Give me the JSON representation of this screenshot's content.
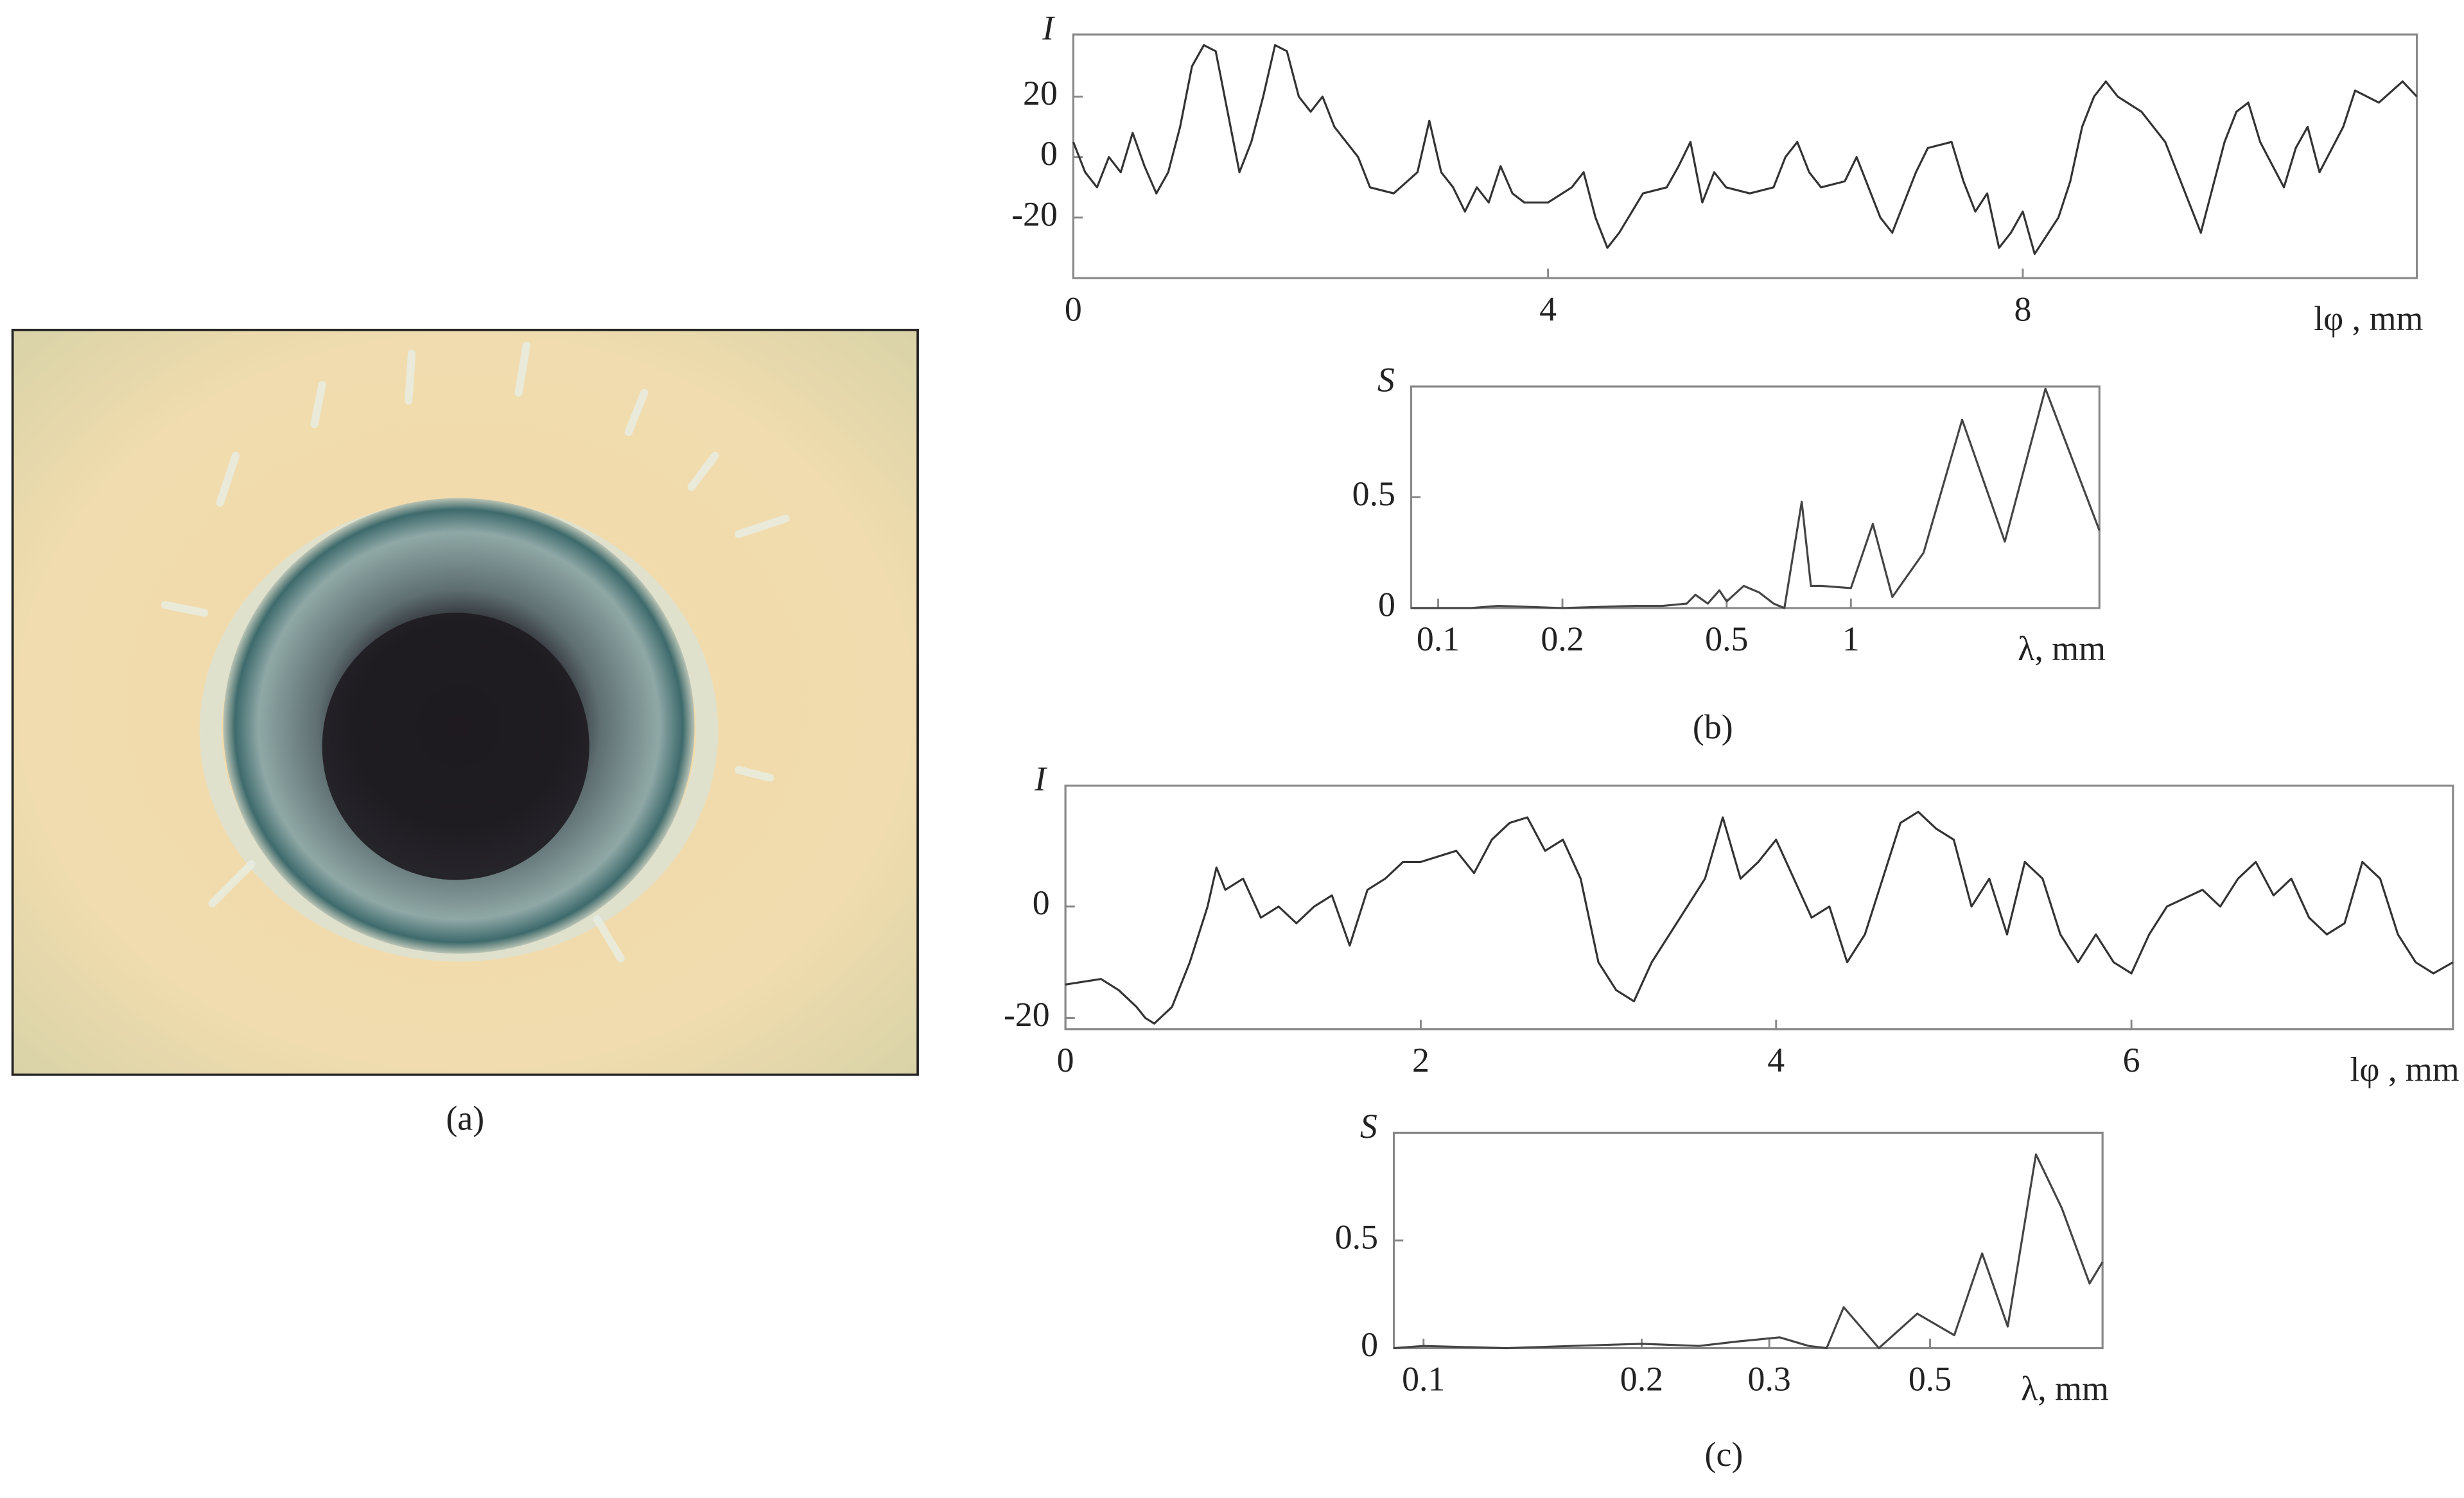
{
  "captions": [
    "(a)",
    "(b)",
    "(c)"
  ],
  "chart_data": [
    {
      "type": "line",
      "ylabel": "I",
      "xlabel": "lφ , mm",
      "color": "#333",
      "xlim": [
        0,
        11.32
      ],
      "xticks": [
        0,
        4,
        8
      ],
      "ylim": [
        -40,
        40.5
      ],
      "yticks": [
        -20,
        0,
        20
      ],
      "x": [
        0,
        0.1,
        0.2,
        0.3,
        0.4,
        0.5,
        0.6,
        0.7,
        0.8,
        0.9,
        1.0,
        1.1,
        1.2,
        1.3,
        1.4,
        1.5,
        1.6,
        1.7,
        1.8,
        1.9,
        2.0,
        2.1,
        2.2,
        2.4,
        2.5,
        2.7,
        2.9,
        3.0,
        3.1,
        3.2,
        3.3,
        3.4,
        3.5,
        3.6,
        3.7,
        3.8,
        4.0,
        4.2,
        4.3,
        4.4,
        4.5,
        4.6,
        4.8,
        5.0,
        5.1,
        5.2,
        5.3,
        5.4,
        5.5,
        5.7,
        5.9,
        6.0,
        6.1,
        6.2,
        6.3,
        6.5,
        6.6,
        6.7,
        6.8,
        6.9,
        7.0,
        7.1,
        7.2,
        7.4,
        7.5,
        7.6,
        7.7,
        7.8,
        7.9,
        8.0,
        8.1,
        8.3,
        8.4,
        8.5,
        8.6,
        8.7,
        8.8,
        9.0,
        9.2,
        9.4,
        9.5,
        9.6,
        9.7,
        9.8,
        9.9,
        10.0,
        10.2,
        10.3,
        10.4,
        10.5,
        10.7,
        10.8,
        11.0,
        11.2,
        11.32
      ],
      "values": [
        5,
        -5,
        -10,
        0,
        -5,
        8,
        -3,
        -12,
        -5,
        10,
        30,
        37,
        35,
        15,
        -5,
        5,
        20,
        37,
        35,
        20,
        15,
        20,
        10,
        0,
        -10,
        -12,
        -5,
        12,
        -5,
        -10,
        -18,
        -10,
        -15,
        -3,
        -12,
        -15,
        -15,
        -10,
        -5,
        -20,
        -30,
        -25,
        -12,
        -10,
        -3,
        5,
        -15,
        -5,
        -10,
        -12,
        -10,
        0,
        5,
        -5,
        -10,
        -8,
        0,
        -10,
        -20,
        -25,
        -15,
        -5,
        3,
        5,
        -8,
        -18,
        -12,
        -30,
        -25,
        -18,
        -32,
        -20,
        -8,
        10,
        20,
        25,
        20,
        15,
        5,
        -15,
        -25,
        -10,
        5,
        15,
        18,
        5,
        -10,
        3,
        10,
        -5,
        10,
        22,
        18,
        25,
        20
      ]
    },
    {
      "type": "line",
      "ylabel": "S",
      "xlabel": "λ, mm",
      "color": "#444",
      "xscale": "log",
      "xlim": [
        0.086,
        4.0
      ],
      "xticks": [
        0.1,
        0.2,
        0.5,
        1
      ],
      "ylim": [
        0,
        1
      ],
      "yticks": [
        0,
        0.5
      ],
      "x": [
        0.086,
        0.12,
        0.14,
        0.2,
        0.3,
        0.35,
        0.4,
        0.42,
        0.45,
        0.48,
        0.5,
        0.55,
        0.6,
        0.65,
        0.69,
        0.76,
        0.8,
        0.85,
        1.0,
        1.13,
        1.26,
        1.5,
        1.86,
        2.36,
        2.96,
        4.0
      ],
      "values": [
        0,
        0,
        0.01,
        0,
        0.01,
        0.01,
        0.02,
        0.06,
        0.02,
        0.08,
        0.03,
        0.1,
        0.07,
        0.02,
        0,
        0.48,
        0.1,
        0.1,
        0.09,
        0.38,
        0.05,
        0.25,
        0.85,
        0.3,
        0.99,
        0.35
      ]
    },
    {
      "type": "line",
      "ylabel": "I",
      "xlabel": "lφ , mm",
      "color": "#333",
      "xlim": [
        0,
        7.81
      ],
      "xticks": [
        0,
        2,
        4,
        6
      ],
      "ylim": [
        -22,
        21.7
      ],
      "yticks": [
        -20,
        0
      ],
      "x": [
        0,
        0.2,
        0.3,
        0.4,
        0.45,
        0.5,
        0.6,
        0.7,
        0.8,
        0.85,
        0.9,
        1.0,
        1.1,
        1.2,
        1.3,
        1.4,
        1.5,
        1.6,
        1.7,
        1.8,
        1.9,
        2.0,
        2.2,
        2.3,
        2.4,
        2.5,
        2.6,
        2.7,
        2.8,
        2.9,
        3.0,
        3.1,
        3.2,
        3.3,
        3.4,
        3.5,
        3.6,
        3.7,
        3.8,
        3.9,
        4.0,
        4.1,
        4.2,
        4.3,
        4.4,
        4.5,
        4.6,
        4.7,
        4.8,
        4.9,
        5.0,
        5.1,
        5.2,
        5.3,
        5.4,
        5.5,
        5.6,
        5.7,
        5.8,
        5.9,
        6.0,
        6.1,
        6.2,
        6.4,
        6.5,
        6.6,
        6.7,
        6.8,
        6.9,
        7.0,
        7.1,
        7.2,
        7.3,
        7.4,
        7.5,
        7.6,
        7.7,
        7.81
      ],
      "values": [
        -14,
        -13,
        -15,
        -18,
        -20,
        -21,
        -18,
        -10,
        0,
        7,
        3,
        5,
        -2,
        0,
        -3,
        0,
        2,
        -7,
        3,
        5,
        8,
        8,
        10,
        6,
        12,
        15,
        16,
        10,
        12,
        5,
        -10,
        -15,
        -17,
        -10,
        -5,
        0,
        5,
        16,
        5,
        8,
        12,
        5,
        -2,
        0,
        -10,
        -5,
        5,
        15,
        17,
        14,
        12,
        0,
        5,
        -5,
        8,
        5,
        -5,
        -10,
        -5,
        -10,
        -12,
        -5,
        0,
        3,
        0,
        5,
        8,
        2,
        5,
        -2,
        -5,
        -3,
        8,
        5,
        -5,
        -10,
        -12,
        -10
      ]
    },
    {
      "type": "line",
      "ylabel": "S",
      "xlabel": "λ, mm",
      "color": "#444",
      "xscale": "log",
      "xlim": [
        0.091,
        0.865
      ],
      "xticks": [
        0.1,
        0.2,
        0.3,
        0.5
      ],
      "ylim": [
        0,
        1
      ],
      "yticks": [
        0,
        0.5
      ],
      "x": [
        0.091,
        0.1,
        0.13,
        0.16,
        0.2,
        0.24,
        0.27,
        0.31,
        0.34,
        0.36,
        0.38,
        0.425,
        0.48,
        0.54,
        0.59,
        0.64,
        0.7,
        0.76,
        0.83,
        0.865
      ],
      "values": [
        0,
        0.01,
        0,
        0.01,
        0.02,
        0.01,
        0.03,
        0.05,
        0.01,
        0,
        0.19,
        0,
        0.16,
        0.06,
        0.44,
        0.1,
        0.9,
        0.65,
        0.3,
        0.4
      ]
    }
  ]
}
